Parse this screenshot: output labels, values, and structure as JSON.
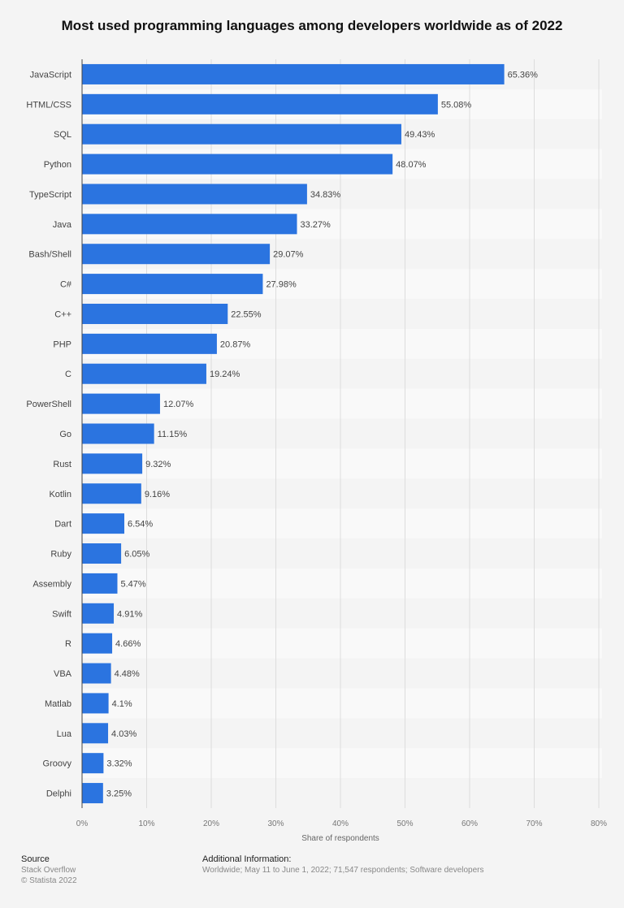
{
  "chart_data": {
    "type": "bar",
    "orientation": "horizontal",
    "title": "Most used programming languages among developers worldwide as of 2022",
    "xlabel": "Share of respondents",
    "ylabel": "",
    "xlim": [
      0,
      80
    ],
    "xticks": [
      "0%",
      "10%",
      "20%",
      "30%",
      "40%",
      "50%",
      "60%",
      "70%",
      "80%"
    ],
    "grid": true,
    "bar_color": "#2b74e0",
    "categories": [
      "JavaScript",
      "HTML/CSS",
      "SQL",
      "Python",
      "TypeScript",
      "Java",
      "Bash/Shell",
      "C#",
      "C++",
      "PHP",
      "C",
      "PowerShell",
      "Go",
      "Rust",
      "Kotlin",
      "Dart",
      "Ruby",
      "Assembly",
      "Swift",
      "R",
      "VBA",
      "Matlab",
      "Lua",
      "Groovy",
      "Delphi"
    ],
    "values": [
      65.36,
      55.08,
      49.43,
      48.07,
      34.83,
      33.27,
      29.07,
      27.98,
      22.55,
      20.87,
      19.24,
      12.07,
      11.15,
      9.32,
      9.16,
      6.54,
      6.05,
      5.47,
      4.91,
      4.66,
      4.48,
      4.1,
      4.03,
      3.32,
      3.25
    ],
    "value_labels": [
      "65.36%",
      "55.08%",
      "49.43%",
      "48.07%",
      "34.83%",
      "33.27%",
      "29.07%",
      "27.98%",
      "22.55%",
      "20.87%",
      "19.24%",
      "12.07%",
      "11.15%",
      "9.32%",
      "9.16%",
      "6.54%",
      "6.05%",
      "5.47%",
      "4.91%",
      "4.66%",
      "4.48%",
      "4.1%",
      "4.03%",
      "3.32%",
      "3.25%"
    ]
  },
  "footer": {
    "source_heading": "Source",
    "source_line1": "Stack Overflow",
    "source_line2": "© Statista 2022",
    "info_heading": "Additional Information:",
    "info_text": "Worldwide; May 11 to June 1, 2022; 71,547 respondents; Software developers"
  }
}
